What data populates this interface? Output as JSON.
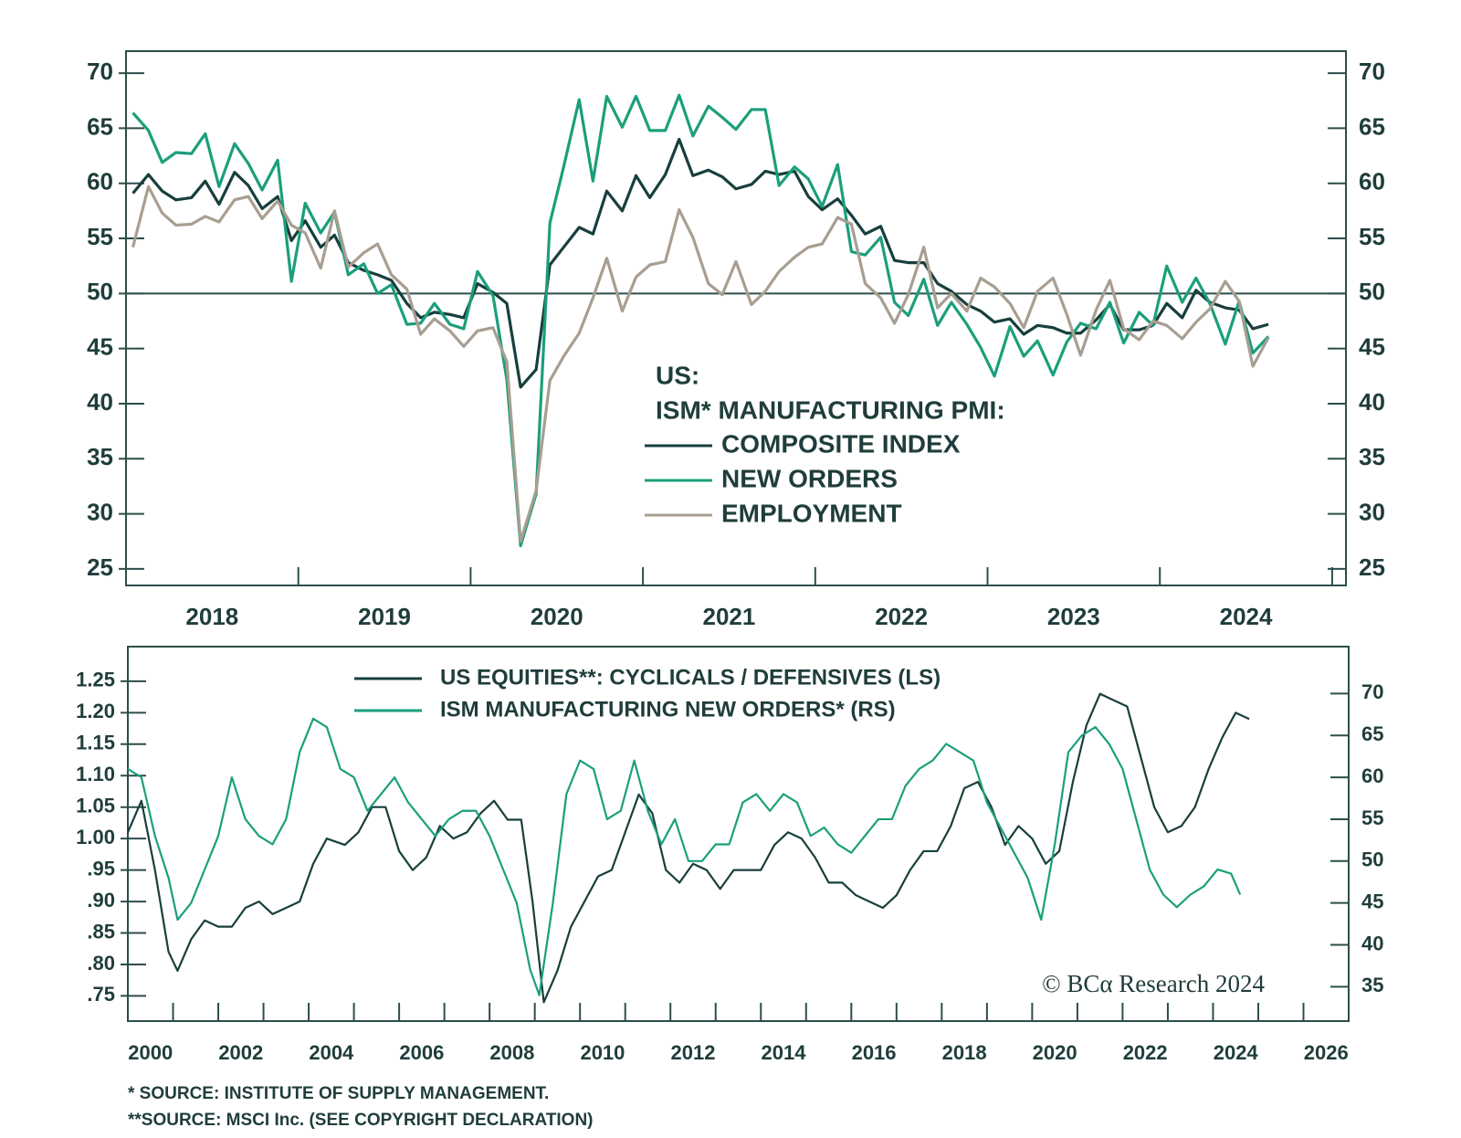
{
  "chart_data": [
    {
      "type": "line",
      "legend_title": [
        "US:",
        "ISM* MANUFACTURING PMI:"
      ],
      "xlim": [
        2018,
        2025.08
      ],
      "xticks": [
        {
          "value": 2018.5,
          "label": "2018"
        },
        {
          "value": 2019.5,
          "label": "2019"
        },
        {
          "value": 2020.5,
          "label": "2020"
        },
        {
          "value": 2021.5,
          "label": "2021"
        },
        {
          "value": 2022.5,
          "label": "2022"
        },
        {
          "value": 2023.5,
          "label": "2023"
        },
        {
          "value": 2024.5,
          "label": "2024"
        }
      ],
      "xminor": [
        2019,
        2020,
        2021,
        2022,
        2023,
        2024,
        2025
      ],
      "ylim": [
        23.5,
        72
      ],
      "yticks": [
        25,
        30,
        35,
        40,
        45,
        50,
        55,
        60,
        65,
        70
      ],
      "y2lim": [
        23.5,
        72
      ],
      "y2ticks": [
        25,
        30,
        35,
        40,
        45,
        50,
        55,
        60,
        65,
        70
      ],
      "hline": 50,
      "x": [
        2018.04,
        2018.13,
        2018.21,
        2018.29,
        2018.38,
        2018.46,
        2018.54,
        2018.63,
        2018.71,
        2018.79,
        2018.88,
        2018.96,
        2019.04,
        2019.13,
        2019.21,
        2019.29,
        2019.38,
        2019.46,
        2019.54,
        2019.63,
        2019.71,
        2019.79,
        2019.88,
        2019.96,
        2020.04,
        2020.13,
        2020.21,
        2020.29,
        2020.38,
        2020.46,
        2020.54,
        2020.63,
        2020.71,
        2020.79,
        2020.88,
        2020.96,
        2021.04,
        2021.13,
        2021.21,
        2021.29,
        2021.38,
        2021.46,
        2021.54,
        2021.63,
        2021.71,
        2021.79,
        2021.88,
        2021.96,
        2022.04,
        2022.13,
        2022.21,
        2022.29,
        2022.38,
        2022.46,
        2022.54,
        2022.63,
        2022.71,
        2022.79,
        2022.88,
        2022.96,
        2023.04,
        2023.13,
        2023.21,
        2023.29,
        2023.38,
        2023.46,
        2023.54,
        2023.63,
        2023.71,
        2023.79,
        2023.88,
        2023.96,
        2024.04,
        2024.13,
        2024.21,
        2024.29,
        2024.38,
        2024.46,
        2024.54,
        2024.63
      ],
      "series": [
        {
          "name": "COMPOSITE INDEX",
          "color": "#173f3d",
          "values": [
            59.1,
            60.8,
            59.3,
            58.5,
            58.7,
            60.2,
            58.1,
            61.0,
            59.8,
            57.7,
            58.8,
            54.8,
            56.6,
            54.2,
            55.3,
            52.8,
            52.1,
            51.7,
            51.2,
            49.1,
            47.8,
            48.3,
            48.1,
            47.8,
            50.9,
            50.1,
            49.1,
            41.5,
            43.1,
            52.6,
            54.2,
            56.0,
            55.4,
            59.3,
            57.5,
            60.7,
            58.7,
            60.8,
            64.0,
            60.7,
            61.2,
            60.6,
            59.5,
            59.9,
            61.1,
            60.8,
            61.1,
            58.8,
            57.6,
            58.6,
            57.1,
            55.4,
            56.1,
            53.0,
            52.8,
            52.8,
            50.9,
            50.2,
            49.0,
            48.4,
            47.4,
            47.7,
            46.3,
            47.1,
            46.9,
            46.4,
            46.4,
            47.6,
            49.0,
            46.7,
            46.7,
            47.1,
            49.1,
            47.8,
            50.3,
            49.2,
            48.7,
            48.5,
            46.8,
            47.2
          ]
        },
        {
          "name": "NEW ORDERS",
          "color": "#1b9f7b",
          "values": [
            66.4,
            64.8,
            61.9,
            62.8,
            62.7,
            64.5,
            59.7,
            63.6,
            61.8,
            59.4,
            62.1,
            51.1,
            58.2,
            55.5,
            57.4,
            51.7,
            52.7,
            50.0,
            50.8,
            47.2,
            47.3,
            49.1,
            47.2,
            46.8,
            52.0,
            49.8,
            42.2,
            27.1,
            31.8,
            56.4,
            61.5,
            67.6,
            60.2,
            67.9,
            65.1,
            67.9,
            64.8,
            64.8,
            68.0,
            64.3,
            67.0,
            66.0,
            64.9,
            66.7,
            66.7,
            59.8,
            61.5,
            60.4,
            57.9,
            61.7,
            53.8,
            53.5,
            55.1,
            49.2,
            48.0,
            51.3,
            47.1,
            49.2,
            47.2,
            45.1,
            42.5,
            47.0,
            44.3,
            45.7,
            42.6,
            45.6,
            47.3,
            46.8,
            49.2,
            45.5,
            48.3,
            47.1,
            52.5,
            49.2,
            51.4,
            49.1,
            45.4,
            49.3,
            44.6,
            46.1
          ]
        },
        {
          "name": "EMPLOYMENT",
          "color": "#a89e91",
          "values": [
            54.2,
            59.7,
            57.3,
            56.2,
            56.3,
            57.0,
            56.5,
            58.5,
            58.8,
            56.8,
            58.4,
            56.2,
            55.5,
            52.3,
            57.5,
            52.4,
            53.7,
            54.5,
            51.7,
            50.4,
            46.3,
            47.7,
            46.6,
            45.2,
            46.6,
            46.9,
            43.8,
            27.5,
            32.1,
            42.1,
            44.3,
            46.4,
            49.6,
            53.2,
            48.4,
            51.5,
            52.6,
            52.9,
            57.6,
            55.1,
            50.9,
            49.9,
            52.9,
            49.0,
            50.2,
            52.0,
            53.3,
            54.2,
            54.5,
            56.9,
            56.3,
            50.9,
            49.6,
            47.3,
            49.9,
            54.2,
            48.7,
            50.0,
            48.4,
            51.4,
            50.6,
            49.1,
            46.9,
            50.2,
            51.4,
            48.1,
            44.4,
            48.5,
            51.2,
            46.8,
            45.8,
            47.5,
            47.1,
            45.9,
            47.4,
            48.6,
            51.1,
            49.3,
            43.4,
            46.0
          ]
        }
      ]
    },
    {
      "type": "line",
      "xlim": [
        2000,
        2027
      ],
      "xticks": [
        {
          "value": 2000.5,
          "label": "2000"
        },
        {
          "value": 2002.5,
          "label": "2002"
        },
        {
          "value": 2004.5,
          "label": "2004"
        },
        {
          "value": 2006.5,
          "label": "2006"
        },
        {
          "value": 2008.5,
          "label": "2008"
        },
        {
          "value": 2010.5,
          "label": "2010"
        },
        {
          "value": 2012.5,
          "label": "2012"
        },
        {
          "value": 2014.5,
          "label": "2014"
        },
        {
          "value": 2016.5,
          "label": "2016"
        },
        {
          "value": 2018.5,
          "label": "2018"
        },
        {
          "value": 2020.5,
          "label": "2020"
        },
        {
          "value": 2022.5,
          "label": "2022"
        },
        {
          "value": 2024.5,
          "label": "2024"
        },
        {
          "value": 2026.5,
          "label": "2026"
        }
      ],
      "xminor": [
        2001,
        2002,
        2003,
        2004,
        2005,
        2006,
        2007,
        2008,
        2009,
        2010,
        2011,
        2012,
        2013,
        2014,
        2015,
        2016,
        2017,
        2018,
        2019,
        2020,
        2021,
        2022,
        2023,
        2024,
        2025,
        2026
      ],
      "ylim": [
        0.71,
        1.305
      ],
      "yticks": [
        {
          "value": 0.75,
          "label": ".75"
        },
        {
          "value": 0.8,
          "label": ".80"
        },
        {
          "value": 0.85,
          "label": ".85"
        },
        {
          "value": 0.9,
          "label": ".90"
        },
        {
          "value": 0.95,
          "label": ".95"
        },
        {
          "value": 1.0,
          "label": "1.00"
        },
        {
          "value": 1.05,
          "label": "1.05"
        },
        {
          "value": 1.1,
          "label": "1.10"
        },
        {
          "value": 1.15,
          "label": "1.15"
        },
        {
          "value": 1.2,
          "label": "1.20"
        },
        {
          "value": 1.25,
          "label": "1.25"
        }
      ],
      "y2lim": [
        30.9,
        75.6
      ],
      "y2ticks": [
        35,
        40,
        45,
        50,
        55,
        60,
        65,
        70
      ],
      "annotation": "© BCα Research 2024",
      "series": [
        {
          "name": "US EQUITIES**: CYCLICALS / DEFENSIVES (LS)",
          "color": "#173f3d",
          "x": [
            2000.0,
            2000.3,
            2000.6,
            2000.9,
            2001.1,
            2001.4,
            2001.7,
            2002.0,
            2002.3,
            2002.6,
            2002.9,
            2003.2,
            2003.5,
            2003.8,
            2004.1,
            2004.4,
            2004.8,
            2005.1,
            2005.4,
            2005.7,
            2006.0,
            2006.3,
            2006.6,
            2006.9,
            2007.2,
            2007.5,
            2007.8,
            2008.1,
            2008.4,
            2008.7,
            2008.95,
            2009.2,
            2009.5,
            2009.8,
            2010.1,
            2010.4,
            2010.7,
            2011.0,
            2011.3,
            2011.6,
            2011.9,
            2012.2,
            2012.5,
            2012.8,
            2013.1,
            2013.4,
            2013.7,
            2014.0,
            2014.3,
            2014.6,
            2014.9,
            2015.2,
            2015.5,
            2015.8,
            2016.1,
            2016.4,
            2016.7,
            2017.0,
            2017.3,
            2017.6,
            2017.9,
            2018.2,
            2018.5,
            2018.8,
            2019.1,
            2019.4,
            2019.7,
            2020.0,
            2020.3,
            2020.6,
            2020.9,
            2021.2,
            2021.5,
            2021.8,
            2022.1,
            2022.4,
            2022.7,
            2023.0,
            2023.3,
            2023.6,
            2023.9,
            2024.2,
            2024.5,
            2024.8
          ],
          "values": [
            1.01,
            1.06,
            0.95,
            0.82,
            0.79,
            0.84,
            0.87,
            0.86,
            0.86,
            0.89,
            0.9,
            0.88,
            0.89,
            0.9,
            0.96,
            1.0,
            0.99,
            1.01,
            1.05,
            1.05,
            0.98,
            0.95,
            0.97,
            1.02,
            1.0,
            1.01,
            1.04,
            1.06,
            1.03,
            1.03,
            0.9,
            0.74,
            0.79,
            0.86,
            0.9,
            0.94,
            0.95,
            1.01,
            1.07,
            1.04,
            0.95,
            0.93,
            0.96,
            0.95,
            0.92,
            0.95,
            0.95,
            0.95,
            0.99,
            1.01,
            1.0,
            0.97,
            0.93,
            0.93,
            0.91,
            0.9,
            0.89,
            0.91,
            0.95,
            0.98,
            0.98,
            1.02,
            1.08,
            1.09,
            1.05,
            0.99,
            1.02,
            1.0,
            0.96,
            0.98,
            1.09,
            1.18,
            1.23,
            1.22,
            1.21,
            1.13,
            1.05,
            1.01,
            1.02,
            1.05,
            1.11,
            1.16,
            1.2,
            1.19
          ]
        },
        {
          "name": "ISM MANUFACTURING NEW ORDERS* (RS)",
          "color": "#1b9f7b",
          "axis": "y2",
          "x": [
            2000.0,
            2000.3,
            2000.6,
            2000.9,
            2001.1,
            2001.4,
            2001.7,
            2002.0,
            2002.3,
            2002.6,
            2002.9,
            2003.2,
            2003.5,
            2003.8,
            2004.1,
            2004.4,
            2004.7,
            2005.0,
            2005.3,
            2005.6,
            2005.9,
            2006.2,
            2006.5,
            2006.8,
            2007.1,
            2007.4,
            2007.7,
            2008.0,
            2008.3,
            2008.6,
            2008.9,
            2009.1,
            2009.4,
            2009.7,
            2010.0,
            2010.3,
            2010.6,
            2010.9,
            2011.2,
            2011.5,
            2011.8,
            2012.1,
            2012.4,
            2012.7,
            2013.0,
            2013.3,
            2013.6,
            2013.9,
            2014.2,
            2014.5,
            2014.8,
            2015.1,
            2015.4,
            2015.7,
            2016.0,
            2016.3,
            2016.6,
            2016.9,
            2017.2,
            2017.5,
            2017.8,
            2018.1,
            2018.4,
            2018.7,
            2019.0,
            2019.3,
            2019.6,
            2019.9,
            2020.2,
            2020.5,
            2020.8,
            2021.1,
            2021.4,
            2021.7,
            2022.0,
            2022.3,
            2022.6,
            2022.9,
            2023.2,
            2023.5,
            2023.8,
            2024.1,
            2024.4,
            2024.6
          ],
          "values": [
            61,
            60,
            53,
            48,
            43,
            45,
            49,
            53,
            60,
            55,
            53,
            52,
            55,
            63,
            67,
            66,
            61,
            60,
            56,
            58,
            60,
            57,
            55,
            53,
            55,
            56,
            56,
            53,
            49,
            45,
            37,
            34,
            45,
            58,
            62,
            61,
            55,
            56,
            62,
            56,
            52,
            55,
            50,
            50,
            52,
            52,
            57,
            58,
            56,
            58,
            57,
            53,
            54,
            52,
            51,
            53,
            55,
            55,
            59,
            61,
            62,
            64,
            63,
            62,
            57,
            54,
            51,
            48,
            43,
            52,
            63,
            65,
            66,
            64,
            61,
            55,
            49,
            46,
            44.5,
            46,
            47,
            49,
            48.5,
            46
          ]
        }
      ]
    }
  ],
  "notes": [
    "* SOURCE: INSTITUTE OF SUPPLY MANAGEMENT.",
    "**SOURCE: MSCI Inc. (SEE COPYRIGHT DECLARATION)"
  ]
}
